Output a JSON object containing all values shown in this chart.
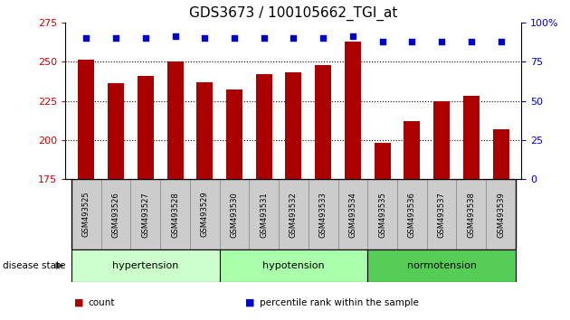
{
  "title": "GDS3673 / 100105662_TGI_at",
  "samples": [
    "GSM493525",
    "GSM493526",
    "GSM493527",
    "GSM493528",
    "GSM493529",
    "GSM493530",
    "GSM493531",
    "GSM493532",
    "GSM493533",
    "GSM493534",
    "GSM493535",
    "GSM493536",
    "GSM493537",
    "GSM493538",
    "GSM493539"
  ],
  "counts": [
    251,
    236,
    241,
    250,
    237,
    232,
    242,
    243,
    248,
    263,
    198,
    212,
    225,
    228,
    207
  ],
  "percentiles": [
    90,
    90,
    90,
    91,
    90,
    90,
    90,
    90,
    90,
    91,
    88,
    88,
    88,
    88,
    88
  ],
  "groups": [
    {
      "label": "hypertension",
      "start": 0,
      "end": 5,
      "color": "#ccffcc"
    },
    {
      "label": "hypotension",
      "start": 5,
      "end": 10,
      "color": "#aaffaa"
    },
    {
      "label": "normotension",
      "start": 10,
      "end": 15,
      "color": "#55cc55"
    }
  ],
  "ylim_left": [
    175,
    275
  ],
  "ylim_right": [
    0,
    100
  ],
  "bar_color": "#aa0000",
  "dot_color": "#0000cc",
  "title_fontsize": 11,
  "axis_color_left": "#cc0000",
  "axis_color_right": "#0000cc",
  "yticks_left": [
    175,
    200,
    225,
    250,
    275
  ],
  "yticks_right": [
    0,
    25,
    50,
    75,
    100
  ],
  "grid_values": [
    200,
    225,
    250
  ],
  "legend_items": [
    {
      "label": "count",
      "color": "#aa0000"
    },
    {
      "label": "percentile rank within the sample",
      "color": "#0000cc"
    }
  ]
}
